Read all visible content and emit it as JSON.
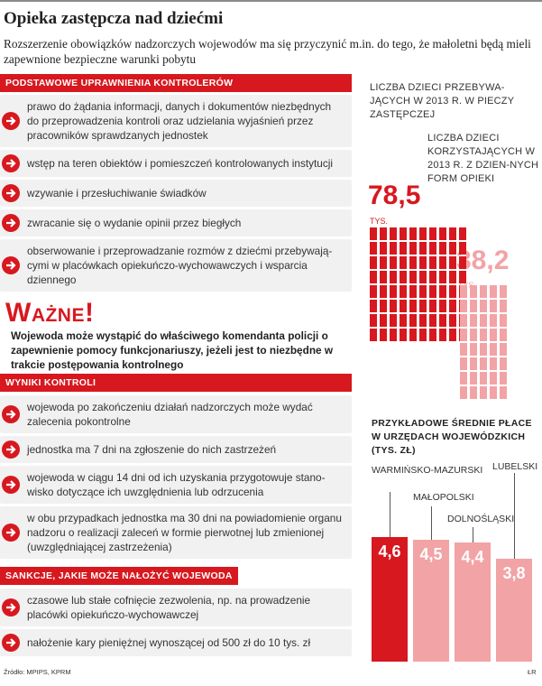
{
  "title": "Opieka zastępcza nad dziećmi",
  "subtitle": "Rozszerzenie obowiązków nadzorczych wojewodów ma się przyczynić m.in. do tego, że małoletni będą mieli zapewnione bezpieczne warunki pobytu",
  "sections": {
    "rights": {
      "header": "PODSTAWOWE UPRAWNIENIA KONTROLERÓW",
      "items": [
        "prawo do żądania informacji, danych i dokumentów niezbędnych do przeprowadzenia kontroli oraz udzielania wyjaśnień przez pracowników sprawdzanych jednostek",
        "wstęp na teren obiektów i pomieszczeń kontrolowanych instytucji",
        "wzywanie i przesłuchiwanie świadków",
        "zwracanie się o wydanie opinii przez biegłych",
        "obserwowanie i przeprowadzanie rozmów z dziećmi przebywają-cymi w placówkach opiekuńczo-wychowawczych i wsparcia dziennego"
      ]
    },
    "important": {
      "heading": "Ważne!",
      "text": "Wojewoda może wystąpić do właściwego komendanta policji o zapewnienie pomocy funkcjonariuszy, jeżeli jest to niezbędne w trakcie postępowania kontrolnego"
    },
    "results": {
      "header": "WYNIKI KONTROLI",
      "items": [
        "wojewoda po zakończeniu działań nadzorczych może wydać zalecenia pokontrolne",
        "jednostka ma 7 dni na zgłoszenie do nich zastrzeżeń",
        "wojewoda w ciągu 14 dni od ich uzyskania przygotowuje stano-wisko dotyczące ich uwzględnienia lub odrzucenia",
        "w obu przypadkach jednostka ma 30 dni na powiadomienie organu nadzoru o realizacji zaleceń w formie pierwotnej lub zmienionej (uwzględniającej zastrzeżenia)"
      ]
    },
    "sanctions": {
      "header": "SANKCJE, JAKIE MOŻE NAŁOŻYĆ WOJEWODA",
      "items": [
        "czasowe lub stałe cofnięcie zezwolenia, np. na prowadzenie placówki opiekuńczo-wychowawczej",
        "nałożenie kary pieniężnej wynoszącej od 500 zł do 10 tys. zł"
      ]
    }
  },
  "children": {
    "foster_label": "LICZBA DZIECI PRZEBYWA-JĄCYCH W 2013 R. W PIECZY ZASTĘPCZEJ",
    "foster_value": "78,5",
    "foster_unit": "TYS.",
    "day_label": "LICZBA DZIECI KORZYSTAJĄCYCH W 2013 R. Z DZIEN-NYCH FORM OPIEKI",
    "day_value": "38,2",
    "day_unit": "TYS.",
    "colors": {
      "foster": "#d7181f",
      "day": "#f2a3a6"
    }
  },
  "chart_data": {
    "type": "bar",
    "title": "Przykładowe średnie płace w urzędach wojewódzkich (tys. zł)",
    "categories": [
      "WARMIŃSKO-MAZURSKI",
      "MAŁOPOLSKI",
      "DOLNOŚLĄSKI",
      "LUBELSKI"
    ],
    "values": [
      4.6,
      4.5,
      4.4,
      3.8
    ],
    "value_labels": [
      "4,6",
      "4,5",
      "4,4",
      "3,8"
    ],
    "colors": [
      "#d7181f",
      "#f2a3a6",
      "#f2a3a6",
      "#f2a3a6"
    ]
  },
  "footer": {
    "source": "Źródło: MPIPS, KPRM",
    "credit": "ŁR"
  }
}
